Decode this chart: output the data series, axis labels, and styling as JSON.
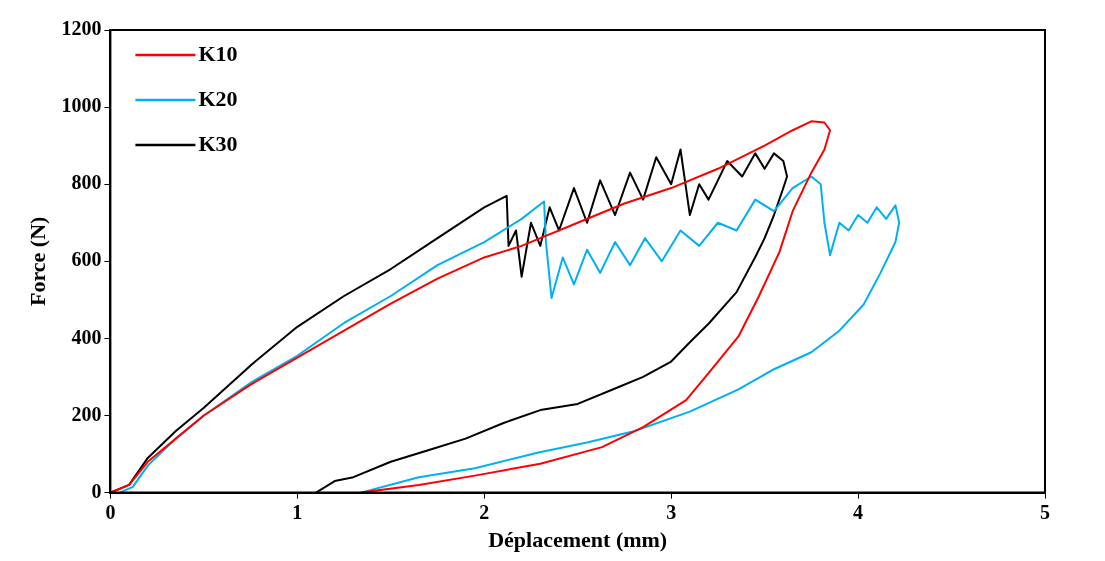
{
  "chart_data": {
    "type": "line",
    "xlabel": "Déplacement (mm)",
    "ylabel": "Force (N)",
    "xlim": [
      0,
      5
    ],
    "xticks": [
      0,
      1,
      2,
      3,
      4,
      5
    ],
    "ylim": [
      0,
      1200
    ],
    "yticks": [
      0,
      200,
      400,
      600,
      800,
      1000,
      1200
    ],
    "grid": false,
    "legend": "top left",
    "marker": "none",
    "line_style": "solid",
    "series": [
      {
        "name": "K10",
        "color": "#ff0000",
        "x": [
          0,
          0.1,
          0.2,
          0.35,
          0.5,
          0.75,
          1,
          1.25,
          1.5,
          1.75,
          2,
          2.2,
          2.3,
          2.5,
          2.75,
          3,
          3.25,
          3.5,
          3.65,
          3.75,
          3.82,
          3.85,
          3.82,
          3.75,
          3.65,
          3.58,
          3.47,
          3.36,
          3.2,
          3.08,
          2.85,
          2.63,
          2.3,
          1.95,
          1.65,
          1.34
        ],
        "values": [
          0,
          20,
          80,
          140,
          200,
          280,
          350,
          420,
          490,
          555,
          610,
          640,
          660,
          700,
          750,
          790,
          840,
          900,
          940,
          963,
          960,
          940,
          890,
          830,
          730,
          625,
          510,
          405,
          310,
          240,
          170,
          118,
          75,
          44,
          20,
          0
        ]
      },
      {
        "name": "K20",
        "color": "#00b0f0",
        "x": [
          0.05,
          0.12,
          0.2,
          0.35,
          0.5,
          0.75,
          1,
          1.25,
          1.5,
          1.75,
          2,
          2.2,
          2.32,
          2.33,
          2.36,
          2.42,
          2.48,
          2.55,
          2.62,
          2.7,
          2.78,
          2.86,
          2.95,
          3.05,
          3.15,
          3.25,
          3.35,
          3.45,
          3.55,
          3.65,
          3.75,
          3.8,
          3.82,
          3.85,
          3.9,
          3.95,
          4.0,
          4.05,
          4.1,
          4.15,
          4.2,
          4.22,
          4.2,
          4.12,
          4.03,
          3.9,
          3.75,
          3.55,
          3.36,
          3.1,
          2.8,
          2.55,
          2.29,
          1.95,
          1.65,
          1.34
        ],
        "values": [
          0,
          15,
          70,
          140,
          200,
          285,
          355,
          440,
          510,
          590,
          650,
          710,
          755,
          650,
          505,
          610,
          540,
          630,
          570,
          650,
          590,
          660,
          600,
          680,
          640,
          700,
          680,
          760,
          730,
          790,
          820,
          800,
          700,
          616,
          700,
          680,
          720,
          700,
          740,
          710,
          745,
          700,
          650,
          570,
          488,
          420,
          364,
          320,
          268,
          210,
          159,
          130,
          104,
          63,
          40,
          0
        ]
      },
      {
        "name": "K30",
        "color": "#000000",
        "x": [
          0,
          0.1,
          0.2,
          0.35,
          0.5,
          0.75,
          1,
          1.25,
          1.5,
          1.75,
          2,
          2.12,
          2.13,
          2.17,
          2.2,
          2.25,
          2.3,
          2.35,
          2.4,
          2.48,
          2.55,
          2.62,
          2.7,
          2.78,
          2.85,
          2.92,
          3.0,
          3.05,
          3.1,
          3.15,
          3.2,
          3.3,
          3.38,
          3.45,
          3.5,
          3.55,
          3.6,
          3.62,
          3.6,
          3.55,
          3.5,
          3.45,
          3.35,
          3.2,
          3.1,
          3.0,
          2.85,
          2.7,
          2.5,
          2.3,
          2.1,
          1.9,
          1.7,
          1.5,
          1.3,
          1.2,
          1.1
        ],
        "values": [
          0,
          20,
          90,
          160,
          220,
          330,
          430,
          510,
          580,
          660,
          740,
          770,
          640,
          680,
          560,
          700,
          640,
          740,
          680,
          790,
          700,
          810,
          720,
          830,
          760,
          870,
          800,
          890,
          720,
          800,
          760,
          860,
          820,
          880,
          840,
          880,
          860,
          820,
          790,
          720,
          660,
          611,
          520,
          438,
          390,
          340,
          300,
          270,
          230,
          214,
          180,
          140,
          110,
          80,
          40,
          30,
          0
        ]
      }
    ]
  }
}
